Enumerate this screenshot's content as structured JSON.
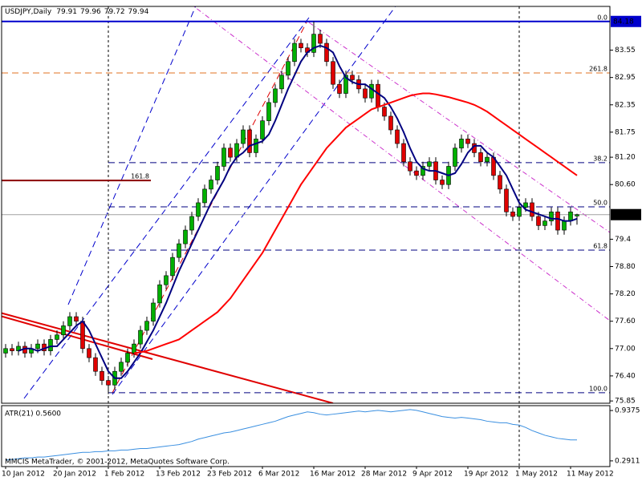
{
  "chart_data": [
    {
      "type": "candlestick",
      "title": "USDJPY,Daily",
      "categories": [
        "10 Jan 2012",
        null,
        null,
        null,
        null,
        null,
        null,
        null,
        "20 Jan 2012",
        null,
        null,
        null,
        null,
        null,
        null,
        null,
        "1 Feb 2012",
        null,
        null,
        null,
        null,
        null,
        null,
        null,
        "13 Feb 2012",
        null,
        null,
        null,
        null,
        null,
        null,
        null,
        "23 Feb 2012",
        null,
        null,
        null,
        null,
        null,
        null,
        null,
        "6 Mar 2012",
        null,
        null,
        null,
        null,
        null,
        null,
        null,
        "16 Mar 2012",
        null,
        null,
        null,
        null,
        null,
        null,
        null,
        "28 Mar 2012",
        null,
        null,
        null,
        null,
        null,
        null,
        null,
        "9 Apr 2012",
        null,
        null,
        null,
        null,
        null,
        null,
        null,
        "19 Apr 2012",
        null,
        null,
        null,
        null,
        null,
        null,
        null,
        "1 May 2012",
        null,
        null,
        null,
        null,
        null,
        null,
        null,
        "11 May 2012",
        null
      ],
      "open": [
        76.9,
        77.0,
        76.95,
        77.05,
        76.9,
        77.0,
        77.1,
        76.95,
        77.2,
        77.3,
        77.5,
        77.7,
        77.6,
        77.0,
        76.8,
        76.5,
        76.3,
        76.2,
        76.5,
        76.7,
        76.9,
        77.1,
        77.4,
        77.6,
        78.0,
        78.4,
        78.6,
        79.0,
        79.3,
        79.6,
        79.9,
        80.2,
        80.5,
        80.7,
        81.0,
        81.4,
        81.2,
        81.5,
        81.8,
        81.3,
        81.6,
        82.0,
        82.4,
        82.7,
        83.0,
        83.3,
        83.7,
        83.6,
        83.5,
        83.9,
        83.7,
        83.3,
        82.8,
        82.6,
        83.0,
        82.9,
        82.7,
        82.5,
        82.8,
        82.3,
        82.1,
        81.8,
        81.5,
        81.1,
        80.9,
        80.8,
        81.0,
        81.1,
        80.7,
        80.6,
        81.0,
        81.4,
        81.6,
        81.5,
        81.3,
        81.1,
        81.2,
        80.8,
        80.5,
        80.0,
        79.9,
        80.1,
        80.2,
        79.9,
        79.7,
        79.8,
        80.0,
        79.6,
        79.8,
        79.91
      ],
      "high": [
        77.1,
        77.1,
        77.15,
        77.15,
        77.1,
        77.2,
        77.2,
        77.3,
        77.4,
        77.6,
        77.8,
        77.8,
        77.7,
        77.1,
        76.9,
        76.6,
        76.4,
        76.6,
        76.8,
        77.0,
        77.2,
        77.5,
        77.7,
        78.1,
        78.5,
        78.7,
        79.1,
        79.4,
        79.7,
        80.0,
        80.3,
        80.6,
        80.8,
        81.1,
        81.5,
        81.5,
        81.6,
        81.9,
        81.9,
        81.7,
        82.1,
        82.5,
        82.8,
        83.1,
        83.4,
        83.8,
        83.8,
        83.7,
        84.18,
        84.0,
        83.8,
        83.4,
        82.9,
        83.1,
        83.1,
        83.0,
        82.8,
        82.9,
        82.9,
        82.4,
        82.2,
        81.9,
        81.6,
        81.2,
        81.0,
        81.1,
        81.2,
        81.2,
        80.8,
        81.1,
        81.5,
        81.7,
        81.7,
        81.6,
        81.4,
        81.3,
        81.3,
        80.9,
        80.6,
        80.1,
        80.2,
        80.3,
        80.3,
        80.0,
        79.9,
        80.1,
        80.1,
        79.9,
        80.1,
        79.96
      ],
      "low": [
        76.8,
        76.85,
        76.85,
        76.8,
        76.8,
        76.9,
        76.85,
        76.85,
        77.1,
        77.2,
        77.4,
        77.5,
        76.9,
        76.7,
        76.4,
        76.2,
        76.0,
        76.1,
        76.4,
        76.6,
        76.8,
        77.0,
        77.3,
        77.5,
        77.9,
        78.3,
        78.5,
        78.9,
        79.2,
        79.5,
        79.8,
        80.1,
        80.4,
        80.6,
        80.9,
        81.1,
        81.1,
        81.4,
        81.2,
        81.2,
        81.5,
        81.9,
        82.3,
        82.6,
        82.9,
        83.2,
        83.5,
        83.4,
        83.4,
        83.6,
        83.2,
        82.7,
        82.5,
        82.5,
        82.8,
        82.6,
        82.4,
        82.4,
        82.2,
        82.0,
        81.7,
        81.4,
        81.0,
        80.8,
        80.7,
        80.7,
        80.9,
        80.6,
        80.5,
        80.5,
        80.9,
        81.3,
        81.4,
        81.2,
        81.0,
        81.0,
        80.7,
        80.4,
        79.9,
        79.8,
        79.8,
        80.0,
        79.8,
        79.6,
        79.6,
        79.7,
        79.5,
        79.5,
        79.7,
        79.72
      ],
      "close": [
        77.0,
        76.95,
        77.05,
        76.9,
        77.0,
        77.1,
        76.95,
        77.2,
        77.3,
        77.5,
        77.7,
        77.6,
        77.0,
        76.8,
        76.5,
        76.3,
        76.2,
        76.5,
        76.7,
        76.9,
        77.1,
        77.4,
        77.6,
        78.0,
        78.4,
        78.6,
        79.0,
        79.3,
        79.6,
        79.9,
        80.2,
        80.5,
        80.7,
        81.0,
        81.4,
        81.2,
        81.5,
        81.8,
        81.3,
        81.6,
        82.0,
        82.4,
        82.7,
        83.0,
        83.3,
        83.7,
        83.6,
        83.5,
        83.9,
        83.7,
        83.3,
        82.8,
        82.6,
        83.0,
        82.9,
        82.7,
        82.5,
        82.8,
        82.3,
        82.1,
        81.8,
        81.5,
        81.1,
        80.9,
        80.8,
        81.0,
        81.1,
        80.7,
        80.6,
        81.0,
        81.4,
        81.6,
        81.5,
        81.3,
        81.1,
        81.2,
        80.8,
        80.5,
        80.0,
        79.9,
        80.1,
        80.2,
        79.9,
        79.7,
        79.8,
        80.0,
        79.6,
        79.8,
        80.0,
        79.94
      ],
      "up_color": "#00b000",
      "down_color": "#e00000",
      "lines": [
        {
          "color": "#000080",
          "values": [
            null,
            null,
            76.95,
            77.0,
            77.0,
            76.95,
            77.0,
            77.05,
            77.05,
            77.2,
            77.35,
            77.5,
            77.6,
            77.4,
            77.1,
            76.8,
            76.5,
            76.35,
            76.35,
            76.5,
            76.7,
            76.9,
            77.15,
            77.4,
            77.7,
            78.0,
            78.35,
            78.7,
            79.0,
            79.3,
            79.6,
            79.9,
            80.2,
            80.45,
            80.7,
            81.0,
            81.2,
            81.3,
            81.45,
            81.5,
            81.55,
            81.7,
            82.0,
            82.35,
            82.7,
            83.0,
            83.3,
            83.5,
            83.6,
            83.65,
            83.6,
            83.5,
            83.2,
            82.95,
            82.85,
            82.8,
            82.8,
            82.7,
            82.6,
            82.5,
            82.3,
            82.05,
            81.75,
            81.4,
            81.1,
            80.95,
            80.9,
            80.9,
            80.85,
            80.8,
            80.85,
            81.05,
            81.3,
            81.45,
            81.45,
            81.3,
            81.2,
            81.0,
            80.8,
            80.5,
            80.2,
            80.05,
            80.0,
            79.95,
            79.9,
            79.85,
            79.85,
            79.8,
            79.8,
            79.85
          ]
        },
        {
          "color": "#ff0000",
          "values": [
            null,
            null,
            null,
            null,
            null,
            null,
            null,
            null,
            null,
            null,
            null,
            null,
            null,
            null,
            null,
            null,
            null,
            null,
            null,
            null,
            76.9,
            76.92,
            76.95,
            77.0,
            77.05,
            77.1,
            77.15,
            77.2,
            77.3,
            77.4,
            77.5,
            77.6,
            77.7,
            77.8,
            77.95,
            78.1,
            78.3,
            78.5,
            78.7,
            78.9,
            79.1,
            79.35,
            79.6,
            79.85,
            80.1,
            80.35,
            80.6,
            80.8,
            81.0,
            81.2,
            81.4,
            81.55,
            81.7,
            81.85,
            81.95,
            82.05,
            82.15,
            82.25,
            82.3,
            82.35,
            82.4,
            82.45,
            82.5,
            82.55,
            82.58,
            82.6,
            82.6,
            82.58,
            82.55,
            82.52,
            82.48,
            82.44,
            82.4,
            82.35,
            82.28,
            82.2,
            82.1,
            82.0,
            81.9,
            81.8,
            81.7,
            81.6,
            81.5,
            81.4,
            81.3,
            81.2,
            81.1,
            81.0,
            80.9,
            80.8
          ]
        }
      ],
      "levels": [
        {
          "label": "0.0",
          "value": 84.18,
          "color": "#0000cc",
          "dash": false,
          "span": "full"
        },
        {
          "label": "261.8",
          "value": 83.05,
          "color": "#e07020",
          "dash": true,
          "span": "full"
        },
        {
          "label": "38.2",
          "value": 81.08,
          "color": "#000080",
          "dash": true,
          "span": "right"
        },
        {
          "label": "161.8",
          "value": 80.69,
          "color": "#8b0000",
          "dash": false,
          "span": "left"
        },
        {
          "label": "50.0",
          "value": 80.11,
          "color": "#000080",
          "dash": true,
          "span": "right"
        },
        {
          "label": "61.8",
          "value": 79.16,
          "color": "#000080",
          "dash": true,
          "span": "right"
        },
        {
          "label": "100.0",
          "value": 76.03,
          "color": "#000080",
          "dash": true,
          "span": "right"
        }
      ],
      "ylim": [
        75.8,
        84.51
      ],
      "yticks": [
        83.55,
        82.95,
        82.35,
        81.75,
        {
          "value": 81.2,
          "label": "81.20"
        },
        {
          "value": 80.6,
          "label": "80.60"
        },
        79.4,
        {
          "value": 78.8,
          "label": "78.80"
        },
        {
          "value": 78.2,
          "label": "78.20"
        },
        {
          "value": 77.6,
          "label": "77.60"
        },
        {
          "value": 77.0,
          "label": "77.00"
        },
        {
          "value": 76.4,
          "label": "76.40"
        },
        75.85
      ],
      "grid": false
    },
    {
      "type": "line",
      "title": "ATR(21) 0.5600",
      "color": "#3a8fe0",
      "values": [
        0.3,
        0.31,
        0.32,
        0.33,
        0.33,
        0.34,
        0.34,
        0.35,
        0.36,
        0.37,
        0.38,
        0.39,
        0.4,
        0.4,
        0.41,
        0.41,
        0.42,
        0.42,
        0.43,
        0.43,
        0.44,
        0.45,
        0.45,
        0.46,
        0.47,
        0.48,
        0.49,
        0.5,
        0.52,
        0.54,
        0.57,
        0.59,
        0.61,
        0.63,
        0.65,
        0.66,
        0.68,
        0.7,
        0.72,
        0.74,
        0.76,
        0.78,
        0.8,
        0.83,
        0.86,
        0.88,
        0.9,
        0.92,
        0.91,
        0.89,
        0.88,
        0.89,
        0.9,
        0.91,
        0.92,
        0.93,
        0.92,
        0.93,
        0.94,
        0.93,
        0.92,
        0.93,
        0.94,
        0.95,
        0.94,
        0.92,
        0.9,
        0.88,
        0.86,
        0.85,
        0.84,
        0.85,
        0.84,
        0.83,
        0.82,
        0.8,
        0.79,
        0.78,
        0.78,
        0.76,
        0.75,
        0.72,
        0.68,
        0.65,
        0.62,
        0.6,
        0.58,
        0.57,
        0.56,
        0.56
      ],
      "ylim": [
        0.218,
        1.0
      ],
      "yticks": [
        0.9375,
        0.2911
      ]
    }
  ],
  "footer": "MMCIS MetaTrader, © 2001-2012, MetaQuotes Software Corp."
}
